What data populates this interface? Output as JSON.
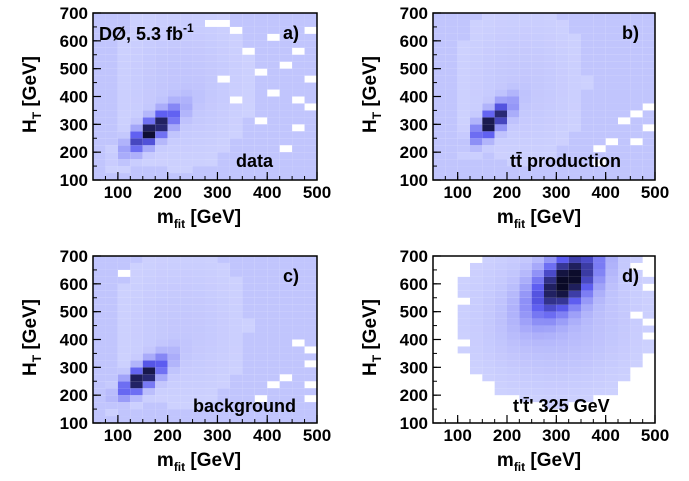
{
  "chart_data": [
    {
      "type": "heatmap",
      "panel_label": "a)",
      "annotation": "data",
      "top_text": "DØ, 5.3 fb",
      "top_text_sup": "-1",
      "xlabel": "m",
      "xlabel_sub": "fit",
      "xlabel_unit": " [GeV]",
      "ylabel": "H",
      "ylabel_sub": "T",
      "ylabel_unit": " [GeV]",
      "xlim": [
        50,
        500
      ],
      "ylim": [
        100,
        700
      ],
      "xticks": [
        "100",
        "200",
        "300",
        "400",
        "500"
      ],
      "yticks": [
        "100",
        "200",
        "300",
        "400",
        "500",
        "600",
        "700"
      ],
      "bin_width_x": 25,
      "bin_width_y": 25,
      "peak": {
        "mfit": 170,
        "ht": 280,
        "sig_x": 32,
        "sig_y": 50,
        "rho": 0.8,
        "amp": 1.0
      },
      "floor": 0.07,
      "tail": {
        "mfit": 230,
        "ht": 450,
        "sig_x": 90,
        "sig_y": 200,
        "amp": 0.07
      },
      "empty_bins": [
        [
          275,
          650
        ],
        [
          300,
          450
        ],
        [
          325,
          375
        ],
        [
          350,
          550
        ],
        [
          375,
          475
        ],
        [
          400,
          400
        ],
        [
          425,
          500
        ],
        [
          450,
          550
        ],
        [
          475,
          350
        ],
        [
          475,
          625
        ],
        [
          450,
          275
        ],
        [
          425,
          200
        ],
        [
          375,
          300
        ],
        [
          300,
          650
        ],
        [
          325,
          625
        ],
        [
          400,
          600
        ],
        [
          475,
          450
        ],
        [
          450,
          375
        ]
      ],
      "colors": {
        "low": "#d2d6ff",
        "mid": "#5a5af0",
        "high": "#0a0a28"
      }
    },
    {
      "type": "heatmap",
      "panel_label": "b)",
      "annotation": "tt̄ production",
      "xlabel": "m",
      "xlabel_sub": "fit",
      "xlabel_unit": " [GeV]",
      "ylabel": "H",
      "ylabel_sub": "T",
      "ylabel_unit": " [GeV]",
      "xlim": [
        50,
        500
      ],
      "ylim": [
        100,
        700
      ],
      "xticks": [
        "100",
        "200",
        "300",
        "400",
        "500"
      ],
      "yticks": [
        "100",
        "200",
        "300",
        "400",
        "500",
        "600",
        "700"
      ],
      "bin_width_x": 25,
      "bin_width_y": 25,
      "peak": {
        "mfit": 170,
        "ht": 310,
        "sig_x": 24,
        "sig_y": 45,
        "rho": 0.75,
        "amp": 1.0
      },
      "floor": 0.07,
      "tail": {
        "mfit": 230,
        "ht": 450,
        "sig_x": 90,
        "sig_y": 200,
        "amp": 0.06
      },
      "empty_bins": [
        [
          75,
          700
        ],
        [
          425,
          300
        ],
        [
          450,
          325
        ],
        [
          475,
          350
        ],
        [
          475,
          275
        ],
        [
          400,
          225
        ],
        [
          375,
          200
        ],
        [
          450,
          225
        ],
        [
          375,
          150
        ]
      ],
      "colors": {
        "low": "#d2d6ff",
        "mid": "#5a5af0",
        "high": "#0a0a28"
      }
    },
    {
      "type": "heatmap",
      "panel_label": "c)",
      "annotation": "background",
      "xlabel": "m",
      "xlabel_sub": "fit",
      "xlabel_unit": " [GeV]",
      "ylabel": "H",
      "ylabel_sub": "T",
      "ylabel_unit": " [GeV]",
      "xlim": [
        50,
        500
      ],
      "ylim": [
        100,
        700
      ],
      "xticks": [
        "100",
        "200",
        "300",
        "400",
        "500"
      ],
      "yticks": [
        "100",
        "200",
        "300",
        "400",
        "500",
        "600",
        "700"
      ],
      "bin_width_x": 25,
      "bin_width_y": 25,
      "peak": {
        "mfit": 150,
        "ht": 265,
        "sig_x": 30,
        "sig_y": 45,
        "rho": 0.75,
        "amp": 1.0
      },
      "floor": 0.07,
      "tail": {
        "mfit": 230,
        "ht": 450,
        "sig_x": 90,
        "sig_y": 200,
        "amp": 0.06
      },
      "empty_bins": [
        [
          100,
          625
        ],
        [
          450,
          375
        ],
        [
          475,
          350
        ],
        [
          475,
          300
        ],
        [
          425,
          250
        ],
        [
          400,
          225
        ],
        [
          475,
          225
        ],
        [
          375,
          175
        ],
        [
          475,
          175
        ]
      ],
      "colors": {
        "low": "#d2d6ff",
        "mid": "#5a5af0",
        "high": "#0a0a28"
      }
    },
    {
      "type": "heatmap",
      "panel_label": "d)",
      "annotation": "t't̄' 325 GeV",
      "xlabel": "m",
      "xlabel_sub": "fit",
      "xlabel_unit": " [GeV]",
      "ylabel": "H",
      "ylabel_sub": "T",
      "ylabel_unit": " [GeV]",
      "xlim": [
        50,
        500
      ],
      "ylim": [
        100,
        700
      ],
      "xticks": [
        "100",
        "200",
        "300",
        "400",
        "500"
      ],
      "yticks": [
        "100",
        "200",
        "300",
        "400",
        "500",
        "600",
        "700"
      ],
      "bin_width_x": 25,
      "bin_width_y": 25,
      "peak": {
        "mfit": 320,
        "ht": 610,
        "sig_x": 45,
        "sig_y": 80,
        "rho": 0.55,
        "amp": 1.0
      },
      "hot_bins": [
        [
          325,
          690
        ]
      ],
      "floor": 0.0,
      "tail": {
        "mfit": 300,
        "ht": 480,
        "sig_x": 110,
        "sig_y": 170,
        "amp": 0.12
      },
      "empty_bins": [
        [
          75,
          600
        ],
        [
          75,
          550
        ],
        [
          75,
          500
        ],
        [
          100,
          525
        ],
        [
          75,
          325
        ],
        [
          100,
          375
        ],
        [
          75,
          250
        ],
        [
          75,
          200
        ],
        [
          75,
          150
        ],
        [
          100,
          175
        ],
        [
          450,
          650
        ],
        [
          475,
          625
        ],
        [
          475,
          575
        ],
        [
          450,
          475
        ],
        [
          475,
          450
        ],
        [
          475,
          400
        ],
        [
          450,
          275
        ],
        [
          475,
          250
        ],
        [
          425,
          225
        ],
        [
          400,
          150
        ],
        [
          475,
          125
        ],
        [
          450,
          150
        ],
        [
          425,
          125
        ],
        [
          375,
          125
        ],
        [
          500,
          325
        ]
      ],
      "colors": {
        "low": "#d2d6ff",
        "mid": "#5a5af0",
        "high": "#0a0a28"
      }
    }
  ]
}
